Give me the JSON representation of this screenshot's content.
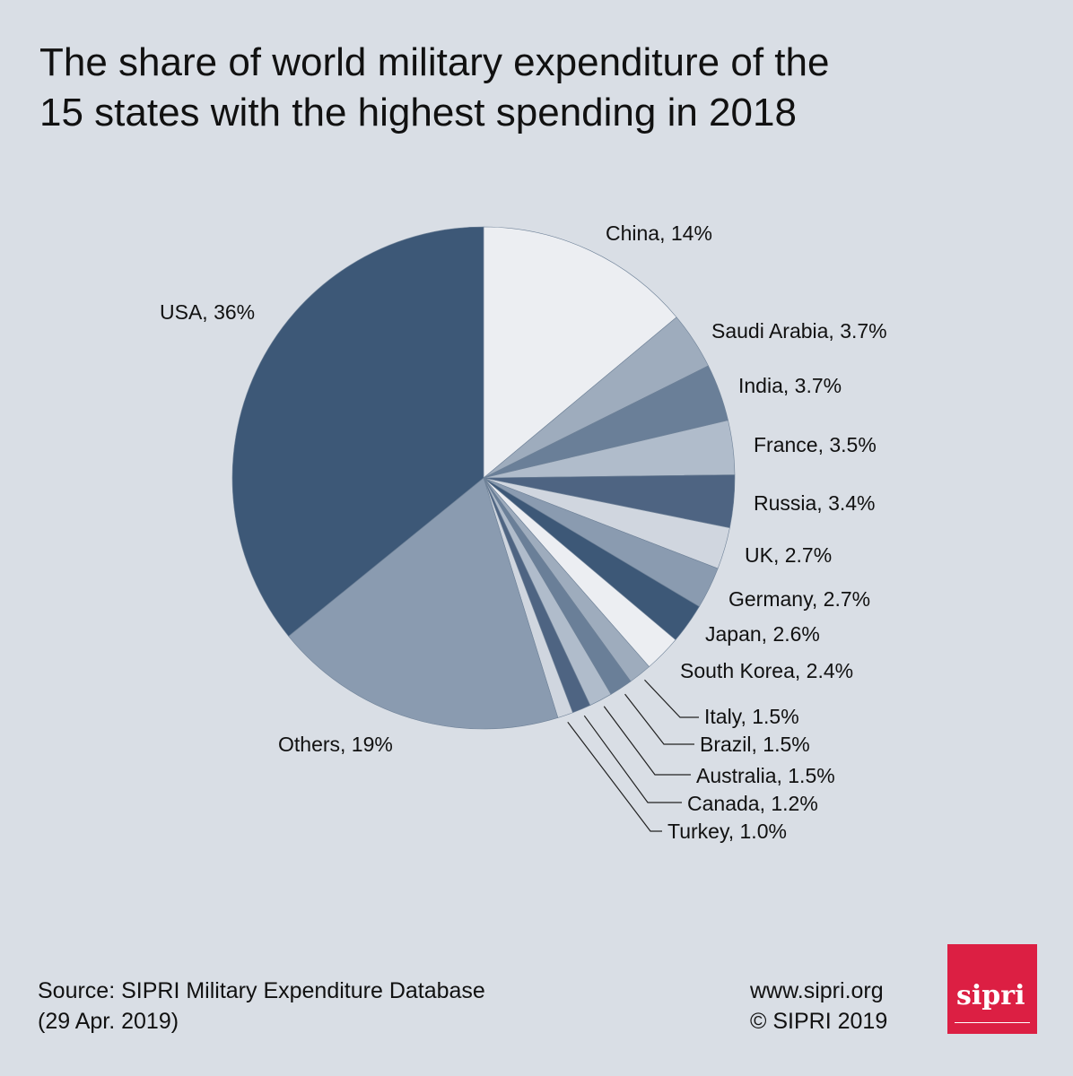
{
  "chart_data": {
    "type": "pie",
    "title": "The share of world military expenditure of the 15 states with the highest spending in 2018",
    "slices": [
      {
        "label": "China, 14%",
        "value": 14,
        "color": "#eceef2"
      },
      {
        "label": "Saudi Arabia, 3.7%",
        "value": 3.7,
        "color": "#9eacbd"
      },
      {
        "label": "India, 3.7%",
        "value": 3.7,
        "color": "#6a7f98"
      },
      {
        "label": "France, 3.5%",
        "value": 3.5,
        "color": "#b0bccb"
      },
      {
        "label": "Russia, 3.4%",
        "value": 3.4,
        "color": "#4e6482"
      },
      {
        "label": "UK, 2.7%",
        "value": 2.7,
        "color": "#d0d6df"
      },
      {
        "label": "Germany, 2.7%",
        "value": 2.7,
        "color": "#8a9bb0"
      },
      {
        "label": "Japan, 2.6%",
        "value": 2.6,
        "color": "#3d5877"
      },
      {
        "label": "South Korea, 2.4%",
        "value": 2.4,
        "color": "#eceef2"
      },
      {
        "label": "Italy, 1.5%",
        "value": 1.5,
        "color": "#9eacbd"
      },
      {
        "label": "Brazil, 1.5%",
        "value": 1.5,
        "color": "#6a7f98"
      },
      {
        "label": "Australia, 1.5%",
        "value": 1.5,
        "color": "#b0bccb"
      },
      {
        "label": "Canada, 1.2%",
        "value": 1.2,
        "color": "#4e6482"
      },
      {
        "label": "Turkey, 1.0%",
        "value": 1.0,
        "color": "#d0d6df"
      },
      {
        "label": "Others, 19%",
        "value": 19,
        "color": "#8a9bb0"
      },
      {
        "label": "USA, 36%",
        "value": 36,
        "color": "#3d5877"
      }
    ]
  },
  "title_lines": [
    "The share of world military expenditure of the",
    "15 states with the highest spending in 2018"
  ],
  "footer": {
    "source_line1": "Source: SIPRI Military Expenditure Database",
    "source_line2": "(29 Apr. 2019)",
    "website": "www.sipri.org",
    "copyright": "© SIPRI 2019"
  },
  "logo": {
    "text": "sipri",
    "color": "#dc1f43"
  }
}
